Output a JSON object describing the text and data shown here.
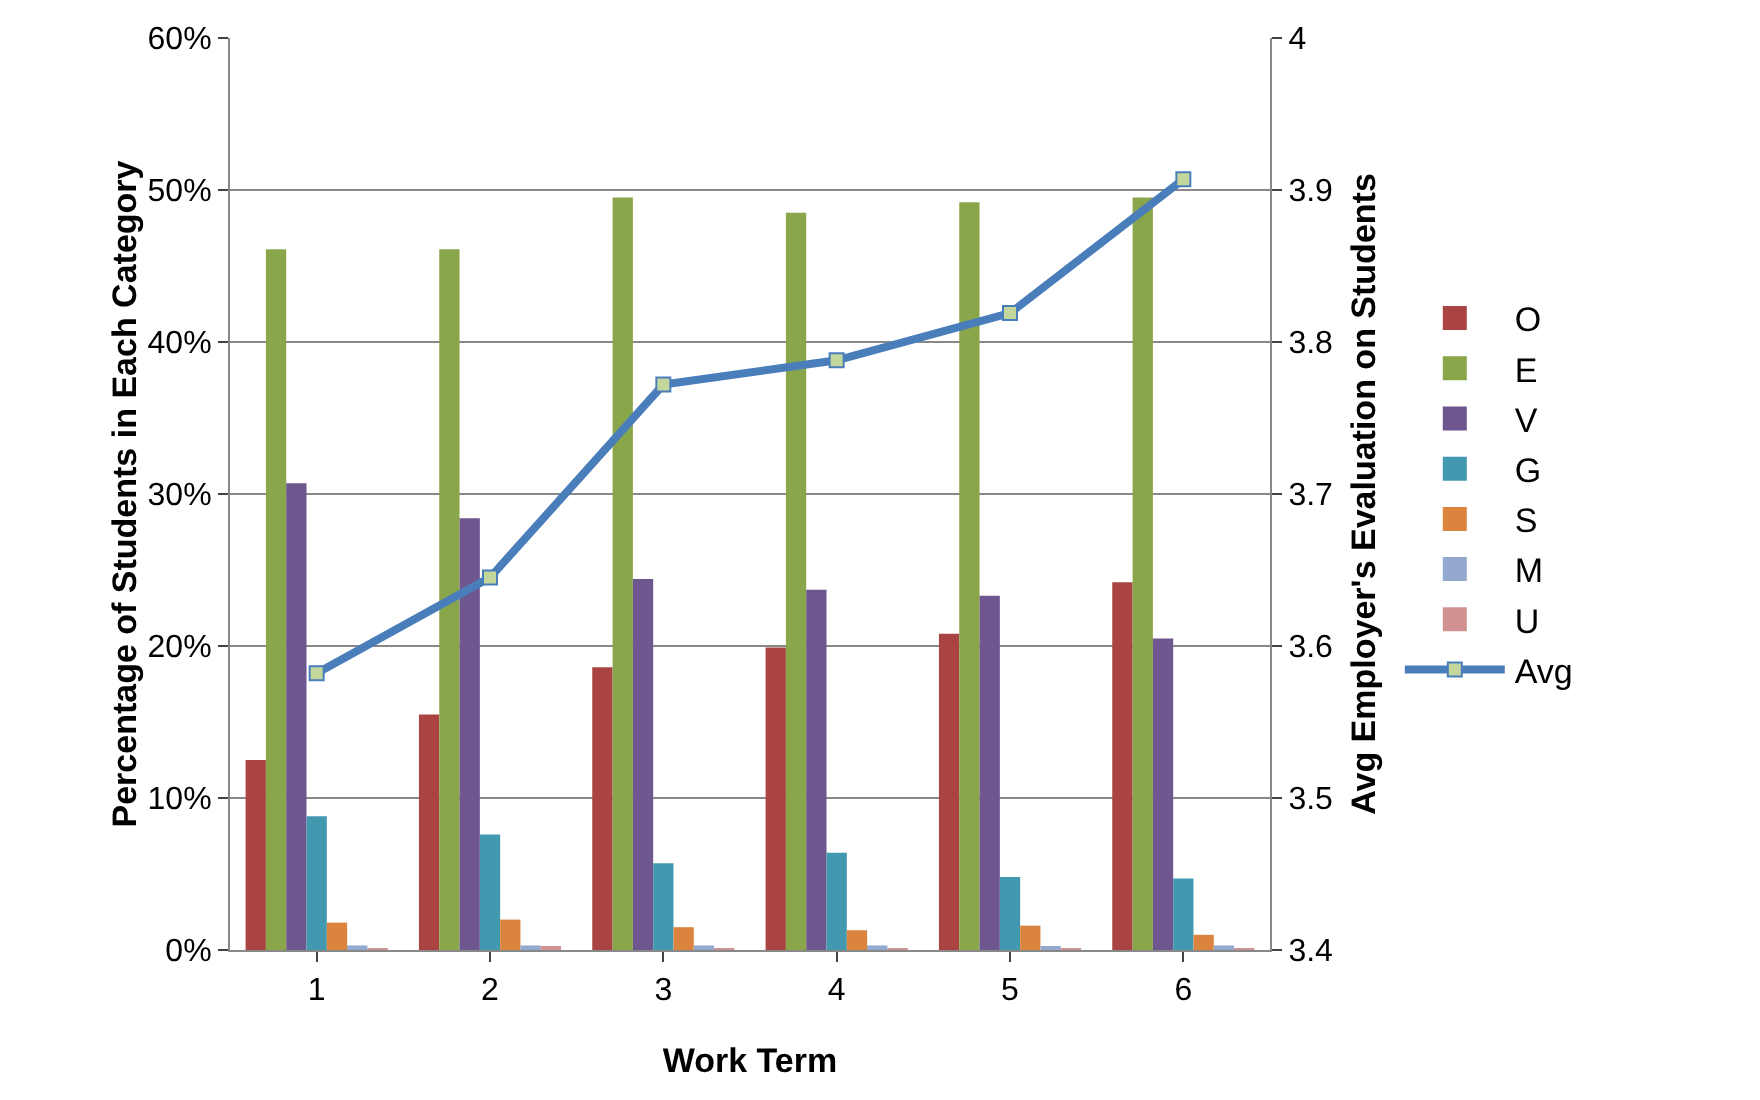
{
  "chart_data": {
    "type": "bar",
    "xlabel": "Work Term",
    "ylabel": "Percentage of Students in Each Category",
    "y2label": "Avg Employer's Evaluation on Students",
    "categories": [
      "1",
      "2",
      "3",
      "4",
      "5",
      "6"
    ],
    "series": [
      {
        "name": "O",
        "color": "#a94442",
        "values": [
          12.5,
          15.5,
          18.6,
          19.9,
          20.8,
          24.2
        ]
      },
      {
        "name": "E",
        "color": "#8aa64b",
        "values": [
          46.1,
          46.1,
          49.5,
          48.5,
          49.2,
          49.5
        ]
      },
      {
        "name": "V",
        "color": "#6e568f",
        "values": [
          30.7,
          28.4,
          24.4,
          23.7,
          23.3,
          20.5
        ]
      },
      {
        "name": "G",
        "color": "#4198af",
        "values": [
          8.8,
          7.6,
          5.7,
          6.4,
          4.8,
          4.7
        ]
      },
      {
        "name": "S",
        "color": "#db843d",
        "values": [
          1.8,
          2.0,
          1.5,
          1.3,
          1.6,
          1.0
        ]
      },
      {
        "name": "M",
        "color": "#93a9cf",
        "values": [
          0.3,
          0.3,
          0.3,
          0.3,
          0.2,
          0.3
        ]
      },
      {
        "name": "U",
        "color": "#d19392",
        "values": [
          0.1,
          0.2,
          0.1,
          0.1,
          0.1,
          0.1
        ]
      },
      {
        "name": "Avg",
        "type": "line",
        "axis": "y2",
        "color": "#4a7ebb",
        "marker": "square",
        "values": [
          3.582,
          3.645,
          3.772,
          3.788,
          3.819,
          3.907
        ]
      }
    ],
    "ylim": [
      0,
      60
    ],
    "yticks": [
      {
        "value": 0,
        "label": "0%"
      },
      {
        "value": 10,
        "label": "10%"
      },
      {
        "value": 20,
        "label": "20%"
      },
      {
        "value": 30,
        "label": "30%"
      },
      {
        "value": 40,
        "label": "40%"
      },
      {
        "value": 50,
        "label": "50%"
      },
      {
        "value": 60,
        "label": "60%"
      }
    ],
    "y2lim": [
      3.4,
      4
    ],
    "y2ticks": [
      {
        "value": 3.4,
        "label": "3.4"
      },
      {
        "value": 3.5,
        "label": "3.5"
      },
      {
        "value": 3.6,
        "label": "3.6"
      },
      {
        "value": 3.7,
        "label": "3.7"
      },
      {
        "value": 3.8,
        "label": "3.8"
      },
      {
        "value": 3.9,
        "label": "3.9"
      },
      {
        "value": 4,
        "label": "4"
      }
    ],
    "grid": "y",
    "legend": "right"
  }
}
